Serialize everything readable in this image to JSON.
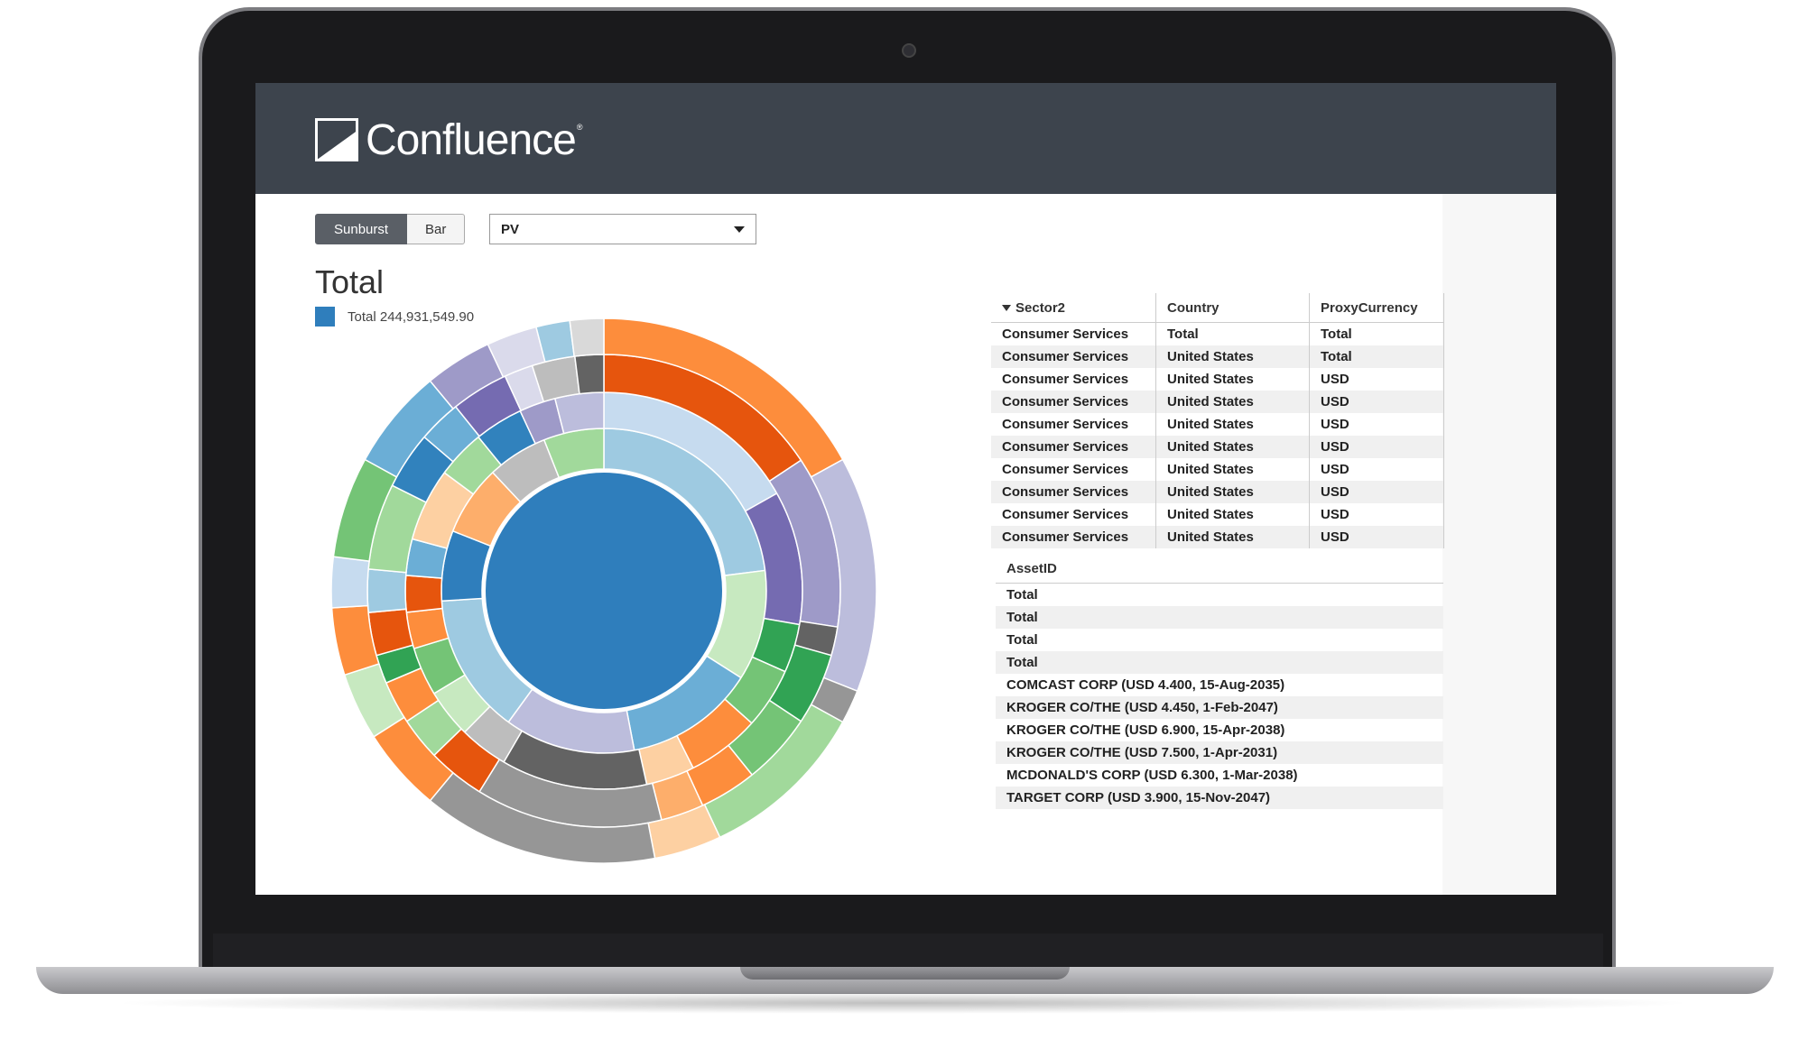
{
  "app": {
    "brand": "Confluence",
    "tm": "®"
  },
  "view_toggle": {
    "options": [
      "Sunburst",
      "Bar"
    ],
    "selected": "Sunburst"
  },
  "measure_select": {
    "value": "PV"
  },
  "chart_title": "Total",
  "legend": {
    "label": "Total 244,931,549.90",
    "color": "#2f7ebc"
  },
  "chart_data": {
    "type": "sunburst",
    "title": "Total",
    "total": 244931549.9,
    "center_color": "#2f7ebc",
    "rings": [
      [
        {
          "frac": 0.23,
          "color": "#9ecae1"
        },
        {
          "frac": 0.11,
          "color": "#c7e9c0"
        },
        {
          "frac": 0.13,
          "color": "#6baed6"
        },
        {
          "frac": 0.13,
          "color": "#bcbddc"
        },
        {
          "frac": 0.14,
          "color": "#9ecae1"
        },
        {
          "frac": 0.07,
          "color": "#2f7ebc"
        },
        {
          "frac": 0.07,
          "color": "#fdae6b"
        },
        {
          "frac": 0.06,
          "color": "#bdbdbd"
        },
        {
          "frac": 0.06,
          "color": "#a1d99b"
        }
      ],
      [
        {
          "frac": 0.17,
          "color": "#c6dbef"
        },
        {
          "frac": 0.11,
          "color": "#756bb1"
        },
        {
          "frac": 0.04,
          "color": "#31a354"
        },
        {
          "frac": 0.05,
          "color": "#74c476"
        },
        {
          "frac": 0.06,
          "color": "#fd8d3c"
        },
        {
          "frac": 0.04,
          "color": "#fdd0a2"
        },
        {
          "frac": 0.12,
          "color": "#636363"
        },
        {
          "frac": 0.04,
          "color": "#bdbdbd"
        },
        {
          "frac": 0.04,
          "color": "#c7e9c0"
        },
        {
          "frac": 0.04,
          "color": "#74c476"
        },
        {
          "frac": 0.03,
          "color": "#fd8d3c"
        },
        {
          "frac": 0.03,
          "color": "#e6550d"
        },
        {
          "frac": 0.03,
          "color": "#6baed6"
        },
        {
          "frac": 0.06,
          "color": "#fdd0a2"
        },
        {
          "frac": 0.04,
          "color": "#a1d99b"
        },
        {
          "frac": 0.04,
          "color": "#3182bd"
        },
        {
          "frac": 0.03,
          "color": "#9e9ac8"
        },
        {
          "frac": 0.04,
          "color": "#bcbddc"
        }
      ],
      [
        {
          "frac": 0.16,
          "color": "#e6550d"
        },
        {
          "frac": 0.12,
          "color": "#9e9ac8"
        },
        {
          "frac": 0.02,
          "color": "#636363"
        },
        {
          "frac": 0.05,
          "color": "#31a354"
        },
        {
          "frac": 0.05,
          "color": "#74c476"
        },
        {
          "frac": 0.04,
          "color": "#fd8d3c"
        },
        {
          "frac": 0.03,
          "color": "#fdae6b"
        },
        {
          "frac": 0.13,
          "color": "#969696"
        },
        {
          "frac": 0.04,
          "color": "#e6550d"
        },
        {
          "frac": 0.03,
          "color": "#a1d99b"
        },
        {
          "frac": 0.03,
          "color": "#fd8d3c"
        },
        {
          "frac": 0.02,
          "color": "#31a354"
        },
        {
          "frac": 0.03,
          "color": "#e6550d"
        },
        {
          "frac": 0.03,
          "color": "#9ecae1"
        },
        {
          "frac": 0.06,
          "color": "#a1d99b"
        },
        {
          "frac": 0.04,
          "color": "#3182bd"
        },
        {
          "frac": 0.03,
          "color": "#6baed6"
        },
        {
          "frac": 0.04,
          "color": "#756bb1"
        },
        {
          "frac": 0.02,
          "color": "#dadaeb"
        },
        {
          "frac": 0.03,
          "color": "#bdbdbd"
        },
        {
          "frac": 0.02,
          "color": "#636363"
        }
      ],
      [
        {
          "frac": 0.17,
          "color": "#fd8d3c"
        },
        {
          "frac": 0.14,
          "color": "#bcbddc"
        },
        {
          "frac": 0.02,
          "color": "#969696"
        },
        {
          "frac": 0.1,
          "color": "#a1d99b"
        },
        {
          "frac": 0.04,
          "color": "#fdd0a2"
        },
        {
          "frac": 0.14,
          "color": "#969696"
        },
        {
          "frac": 0.05,
          "color": "#fd8d3c"
        },
        {
          "frac": 0.04,
          "color": "#c7e9c0"
        },
        {
          "frac": 0.04,
          "color": "#fd8d3c"
        },
        {
          "frac": 0.03,
          "color": "#c6dbef"
        },
        {
          "frac": 0.06,
          "color": "#74c476"
        },
        {
          "frac": 0.06,
          "color": "#6baed6"
        },
        {
          "frac": 0.04,
          "color": "#9e9ac8"
        },
        {
          "frac": 0.03,
          "color": "#dadaeb"
        },
        {
          "frac": 0.02,
          "color": "#9ecae1"
        },
        {
          "frac": 0.02,
          "color": "#d9d9d9"
        }
      ]
    ]
  },
  "table1": {
    "columns": [
      "Sector2",
      "Country",
      "ProxyCurrency"
    ],
    "rows": [
      [
        "Consumer Services",
        "Total",
        "Total"
      ],
      [
        "Consumer Services",
        "United States",
        "Total"
      ],
      [
        "Consumer Services",
        "United States",
        "USD"
      ],
      [
        "Consumer Services",
        "United States",
        "USD"
      ],
      [
        "Consumer Services",
        "United States",
        "USD"
      ],
      [
        "Consumer Services",
        "United States",
        "USD"
      ],
      [
        "Consumer Services",
        "United States",
        "USD"
      ],
      [
        "Consumer Services",
        "United States",
        "USD"
      ],
      [
        "Consumer Services",
        "United States",
        "USD"
      ],
      [
        "Consumer Services",
        "United States",
        "USD"
      ]
    ]
  },
  "table2": {
    "columns": [
      "AssetID"
    ],
    "rows": [
      "Total",
      "Total",
      "Total",
      "Total",
      "COMCAST CORP (USD 4.400, 15-Aug-2035)",
      "KROGER CO/THE (USD 4.450, 1-Feb-2047)",
      "KROGER CO/THE (USD 6.900, 15-Apr-2038)",
      "KROGER CO/THE (USD 7.500, 1-Apr-2031)",
      "MCDONALD'S CORP (USD 6.300, 1-Mar-2038)",
      "TARGET CORP (USD 3.900, 15-Nov-2047)"
    ]
  }
}
